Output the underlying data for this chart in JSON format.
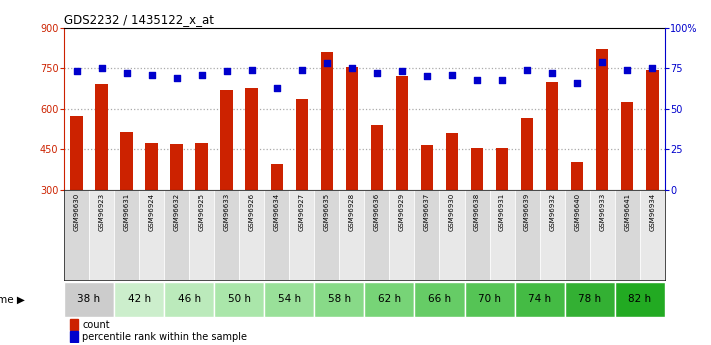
{
  "title": "GDS2232 / 1435122_x_at",
  "samples": [
    "GSM96630",
    "GSM96923",
    "GSM96631",
    "GSM96924",
    "GSM96632",
    "GSM96925",
    "GSM96633",
    "GSM96926",
    "GSM96634",
    "GSM96927",
    "GSM96635",
    "GSM96928",
    "GSM96636",
    "GSM96929",
    "GSM96637",
    "GSM96930",
    "GSM96638",
    "GSM96931",
    "GSM96639",
    "GSM96932",
    "GSM96640",
    "GSM96933",
    "GSM96641",
    "GSM96934"
  ],
  "time_groups": [
    {
      "label": "38 h",
      "indices": [
        0,
        1
      ],
      "bg": "#cccccc"
    },
    {
      "label": "42 h",
      "indices": [
        2,
        3
      ],
      "bg": "#cceecc"
    },
    {
      "label": "46 h",
      "indices": [
        4,
        5
      ],
      "bg": "#bbeabb"
    },
    {
      "label": "50 h",
      "indices": [
        6,
        7
      ],
      "bg": "#aae6aa"
    },
    {
      "label": "54 h",
      "indices": [
        8,
        9
      ],
      "bg": "#99e099"
    },
    {
      "label": "58 h",
      "indices": [
        10,
        11
      ],
      "bg": "#88da88"
    },
    {
      "label": "62 h",
      "indices": [
        12,
        13
      ],
      "bg": "#77d477"
    },
    {
      "label": "66 h",
      "indices": [
        14,
        15
      ],
      "bg": "#66cc66"
    },
    {
      "label": "70 h",
      "indices": [
        16,
        17
      ],
      "bg": "#55c455"
    },
    {
      "label": "74 h",
      "indices": [
        18,
        19
      ],
      "bg": "#44bb44"
    },
    {
      "label": "78 h",
      "indices": [
        20,
        21
      ],
      "bg": "#33b033"
    },
    {
      "label": "82 h",
      "indices": [
        22,
        23
      ],
      "bg": "#22aa22"
    }
  ],
  "sample_cell_colors": [
    "#d8d8d8",
    "#e8e8e8"
  ],
  "counts": [
    575,
    690,
    515,
    475,
    470,
    475,
    670,
    675,
    395,
    635,
    810,
    755,
    540,
    720,
    465,
    510,
    455,
    455,
    565,
    700,
    405,
    820,
    625,
    745
  ],
  "percentiles": [
    73,
    75,
    72,
    71,
    69,
    71,
    73,
    74,
    63,
    74,
    78,
    75,
    72,
    73,
    70,
    71,
    68,
    68,
    74,
    72,
    66,
    79,
    74,
    75
  ],
  "ylim_left": [
    300,
    900
  ],
  "ylim_right": [
    0,
    100
  ],
  "yticks_left": [
    300,
    450,
    600,
    750,
    900
  ],
  "yticks_right": [
    0,
    25,
    50,
    75,
    100
  ],
  "hgrid_lines": [
    450,
    600,
    750
  ],
  "bar_color": "#cc2200",
  "dot_color": "#0000cc",
  "grid_color": "#aaaaaa",
  "legend_count_label": "count",
  "legend_pct_label": "percentile rank within the sample"
}
